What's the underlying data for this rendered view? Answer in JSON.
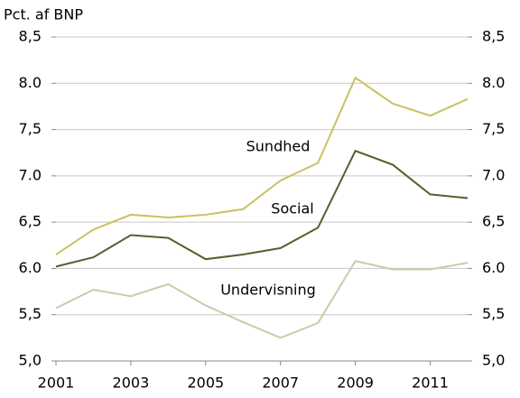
{
  "chart_data": {
    "type": "line",
    "ylabel": "Pct. af BNP",
    "x": [
      2001,
      2002,
      2003,
      2004,
      2005,
      2006,
      2007,
      2008,
      2009,
      2010,
      2011,
      2012
    ],
    "xlim": [
      2001,
      2012
    ],
    "xticks": [
      2001,
      2003,
      2005,
      2007,
      2009,
      2011
    ],
    "ylim": [
      5.0,
      8.5
    ],
    "yticks": [
      {
        "value": 5.0,
        "label": "5,0"
      },
      {
        "value": 5.5,
        "label": "5,5"
      },
      {
        "value": 6.0,
        "label": "6.0"
      },
      {
        "value": 6.5,
        "label": "6,5"
      },
      {
        "value": 7.0,
        "label": "7.0"
      },
      {
        "value": 7.5,
        "label": "7,5"
      },
      {
        "value": 8.0,
        "label": "8.0"
      },
      {
        "value": 8.5,
        "label": "8,5"
      }
    ],
    "y2lim": [
      5.0,
      8.5
    ],
    "y2ticks": [
      {
        "value": 5.0,
        "label": "5,0"
      },
      {
        "value": 5.5,
        "label": "5,5"
      },
      {
        "value": 6.0,
        "label": "6.0"
      },
      {
        "value": 6.5,
        "label": "6,5"
      },
      {
        "value": 7.0,
        "label": "7.0"
      },
      {
        "value": 7.5,
        "label": "7,5"
      },
      {
        "value": 8.0,
        "label": "8.0"
      },
      {
        "value": 8.5,
        "label": "8,5"
      }
    ],
    "grid": true,
    "series": [
      {
        "name": "Sundhed",
        "color": "#c9c160",
        "values": [
          6.15,
          6.42,
          6.58,
          6.55,
          6.58,
          6.64,
          6.95,
          7.14,
          8.06,
          7.78,
          7.65,
          7.83
        ]
      },
      {
        "name": "Social",
        "color": "#5e5b2c",
        "values": [
          6.02,
          6.12,
          6.36,
          6.33,
          6.1,
          6.15,
          6.22,
          6.44,
          7.27,
          7.12,
          6.8,
          6.76
        ]
      },
      {
        "name": "Undervisning",
        "color": "#cfc9ab",
        "values": [
          5.57,
          5.77,
          5.7,
          5.83,
          5.6,
          5.42,
          5.25,
          5.41,
          6.08,
          5.99,
          5.99,
          6.06
        ]
      }
    ]
  }
}
